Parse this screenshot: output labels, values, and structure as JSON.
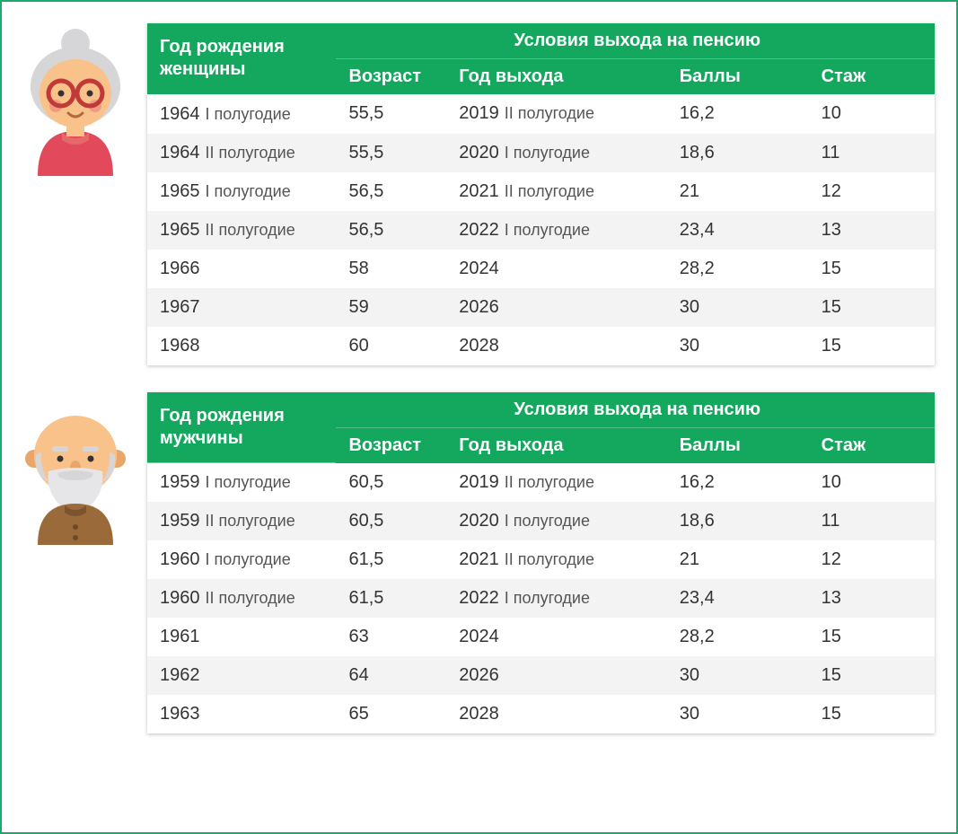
{
  "colors": {
    "border": "#1aab6a",
    "header_bg": "#14a85f",
    "header_text": "#ffffff",
    "row_text": "#333333",
    "row_alt_bg": "#f3f3f3",
    "background": "#ffffff"
  },
  "women": {
    "left_header": "Год рождения женщины",
    "super_header": "Условия выхода на пенсию",
    "columns": [
      "Возраст",
      "Год выхода",
      "Баллы",
      "Стаж"
    ],
    "rows": [
      {
        "birth_year": "1964",
        "birth_half": "I полугодие",
        "age": "55,5",
        "exit_year": "2019",
        "exit_half": "II полугодие",
        "points": "16,2",
        "exp": "10"
      },
      {
        "birth_year": "1964",
        "birth_half": "II полугодие",
        "age": "55,5",
        "exit_year": "2020",
        "exit_half": "I полугодие",
        "points": "18,6",
        "exp": "11"
      },
      {
        "birth_year": "1965",
        "birth_half": "I полугодие",
        "age": "56,5",
        "exit_year": "2021",
        "exit_half": "II полугодие",
        "points": "21",
        "exp": "12"
      },
      {
        "birth_year": "1965",
        "birth_half": "II полугодие",
        "age": "56,5",
        "exit_year": "2022",
        "exit_half": "I полугодие",
        "points": "23,4",
        "exp": "13"
      },
      {
        "birth_year": "1966",
        "birth_half": "",
        "age": "58",
        "exit_year": "2024",
        "exit_half": "",
        "points": "28,2",
        "exp": "15"
      },
      {
        "birth_year": "1967",
        "birth_half": "",
        "age": "59",
        "exit_year": "2026",
        "exit_half": "",
        "points": "30",
        "exp": "15"
      },
      {
        "birth_year": "1968",
        "birth_half": "",
        "age": "60",
        "exit_year": "2028",
        "exit_half": "",
        "points": "30",
        "exp": "15"
      }
    ]
  },
  "men": {
    "left_header": "Год рождения мужчины",
    "super_header": "Условия выхода на пенсию",
    "columns": [
      "Возраст",
      "Год выхода",
      "Баллы",
      "Стаж"
    ],
    "rows": [
      {
        "birth_year": "1959",
        "birth_half": "I полугодие",
        "age": "60,5",
        "exit_year": "2019",
        "exit_half": "II полугодие",
        "points": "16,2",
        "exp": "10"
      },
      {
        "birth_year": "1959",
        "birth_half": "II полугодие",
        "age": "60,5",
        "exit_year": "2020",
        "exit_half": "I полугодие",
        "points": "18,6",
        "exp": "11"
      },
      {
        "birth_year": "1960",
        "birth_half": "I полугодие",
        "age": "61,5",
        "exit_year": "2021",
        "exit_half": "II полугодие",
        "points": "21",
        "exp": "12"
      },
      {
        "birth_year": "1960",
        "birth_half": "II полугодие",
        "age": "61,5",
        "exit_year": "2022",
        "exit_half": "I полугодие",
        "points": "23,4",
        "exp": "13"
      },
      {
        "birth_year": "1961",
        "birth_half": "",
        "age": "63",
        "exit_year": "2024",
        "exit_half": "",
        "points": "28,2",
        "exp": "15"
      },
      {
        "birth_year": "1962",
        "birth_half": "",
        "age": "64",
        "exit_year": "2026",
        "exit_half": "",
        "points": "30",
        "exp": "15"
      },
      {
        "birth_year": "1963",
        "birth_half": "",
        "age": "65",
        "exit_year": "2028",
        "exit_half": "",
        "points": "30",
        "exp": "15"
      }
    ]
  },
  "avatars": {
    "woman": {
      "hair": "#d6d6d8",
      "skin": "#f9c28b",
      "glasses": "#c03a3a",
      "shirt": "#e24a5b",
      "cheeks": "#f19a83"
    },
    "man": {
      "head": "#f9c28b",
      "beard": "#e6e6e8",
      "eyebrows": "#d6d6d8",
      "shirt": "#9b6a3a",
      "ear": "#e8a66a"
    }
  }
}
